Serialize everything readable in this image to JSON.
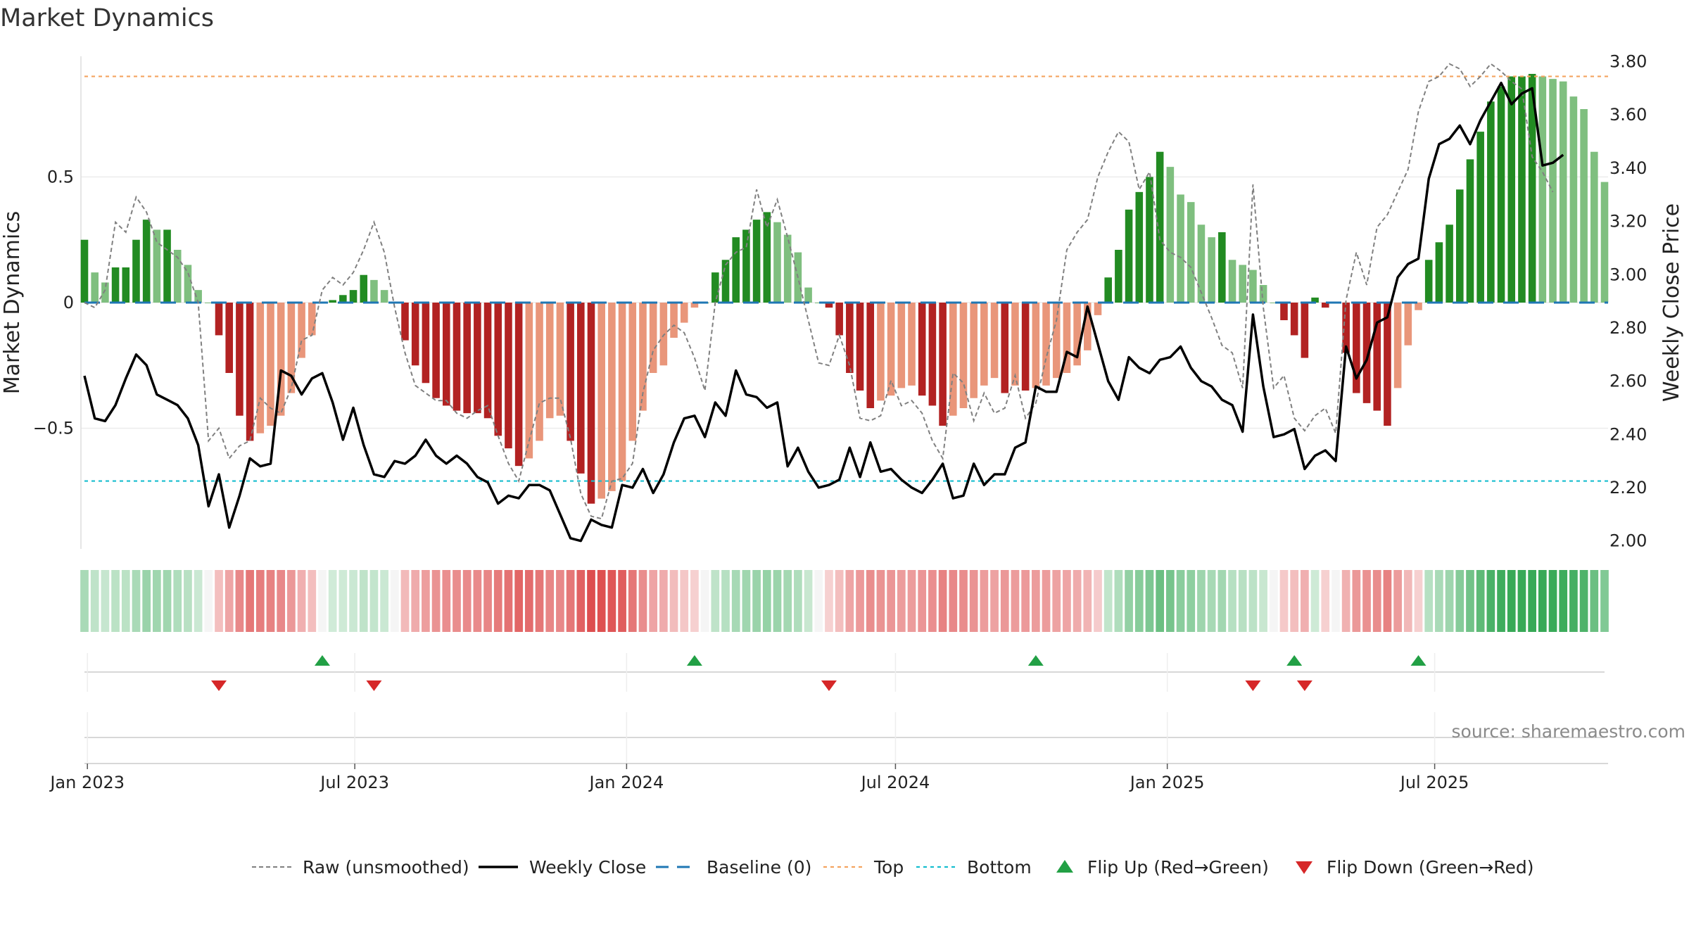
{
  "chart_data": {
    "type": "bar",
    "title": "Market Dynamics",
    "ylabel_left": "Market Dynamics",
    "ylabel_right": "Weekly Close Price",
    "ylim_left": [
      -0.98,
      0.98
    ],
    "ylim_right": [
      1.97,
      3.82
    ],
    "yticks_left": [
      {
        "value": 0.5,
        "label": "0.5"
      },
      {
        "value": 0,
        "label": "0"
      },
      {
        "value": -0.5,
        "label": "−0.5"
      }
    ],
    "yticks_right": [
      {
        "value": 3.8,
        "label": "3.80"
      },
      {
        "value": 3.6,
        "label": "3.60"
      },
      {
        "value": 3.4,
        "label": "3.40"
      },
      {
        "value": 3.2,
        "label": "3.20"
      },
      {
        "value": 3.0,
        "label": "3.00"
      },
      {
        "value": 2.8,
        "label": "2.80"
      },
      {
        "value": 2.6,
        "label": "2.60"
      },
      {
        "value": 2.4,
        "label": "2.40"
      },
      {
        "value": 2.2,
        "label": "2.20"
      },
      {
        "value": 2.0,
        "label": "2.00"
      }
    ],
    "x_start": "2022-12-30",
    "x_step_days": 7,
    "xticks": [
      {
        "date": "2023-01-01",
        "label": "Jan 2023"
      },
      {
        "date": "2023-07-01",
        "label": "Jul 2023"
      },
      {
        "date": "2024-01-01",
        "label": "Jan 2024"
      },
      {
        "date": "2024-07-01",
        "label": "Jul 2024"
      },
      {
        "date": "2025-01-01",
        "label": "Jan 2025"
      },
      {
        "date": "2025-07-01",
        "label": "Jul 2025"
      }
    ],
    "top": 0.9,
    "bottom": -0.71,
    "baseline": 0,
    "colors": {
      "pos_strong": "#228b22",
      "pos_weak": "#7fbf7f",
      "neg_strong": "#b22222",
      "neg_weak": "#e9967a",
      "close": "#000000",
      "raw": "#808080",
      "baseline": "#1f77b4",
      "top": "#f4a460",
      "bottom": "#17becf",
      "flip_up": "#22a045",
      "flip_down": "#d62728"
    },
    "dynamics": [
      0.25,
      0.12,
      0.08,
      0.14,
      0.14,
      0.25,
      0.33,
      0.29,
      0.29,
      0.21,
      0.15,
      0.05,
      0,
      -0.13,
      -0.28,
      -0.45,
      -0.55,
      -0.52,
      -0.49,
      -0.45,
      -0.36,
      -0.22,
      -0.13,
      0,
      0.01,
      0.03,
      0.05,
      0.11,
      0.09,
      0.05,
      0,
      -0.15,
      -0.25,
      -0.32,
      -0.38,
      -0.41,
      -0.43,
      -0.44,
      -0.44,
      -0.46,
      -0.53,
      -0.58,
      -0.65,
      -0.62,
      -0.55,
      -0.46,
      -0.45,
      -0.55,
      -0.68,
      -0.8,
      -0.78,
      -0.75,
      -0.71,
      -0.55,
      -0.43,
      -0.28,
      -0.25,
      -0.14,
      -0.08,
      -0.02,
      0,
      0.12,
      0.17,
      0.26,
      0.29,
      0.33,
      0.36,
      0.32,
      0.27,
      0.2,
      0.06,
      0,
      -0.02,
      -0.13,
      -0.28,
      -0.35,
      -0.42,
      -0.39,
      -0.37,
      -0.34,
      -0.33,
      -0.37,
      -0.41,
      -0.49,
      -0.45,
      -0.42,
      -0.38,
      -0.33,
      -0.3,
      -0.36,
      -0.33,
      -0.35,
      -0.34,
      -0.33,
      -0.3,
      -0.28,
      -0.25,
      -0.19,
      -0.05,
      0.1,
      0.21,
      0.37,
      0.44,
      0.5,
      0.6,
      0.54,
      0.43,
      0.4,
      0.31,
      0.26,
      0.28,
      0.17,
      0.15,
      0.13,
      0.07,
      0,
      -0.07,
      -0.13,
      -0.22,
      0.02,
      -0.02,
      0,
      -0.2,
      -0.36,
      -0.4,
      -0.43,
      -0.49,
      -0.34,
      -0.17,
      -0.03,
      0.17,
      0.24,
      0.31,
      0.45,
      0.57,
      0.68,
      0.8,
      0.86,
      0.9,
      0.9,
      0.91,
      0.9,
      0.89,
      0.88,
      0.82,
      0.77,
      0.6,
      0.48
    ],
    "close": [
      2.62,
      2.46,
      2.45,
      2.51,
      2.61,
      2.7,
      2.66,
      2.55,
      2.53,
      2.51,
      2.46,
      2.36,
      2.13,
      2.25,
      2.05,
      2.17,
      2.31,
      2.28,
      2.29,
      2.64,
      2.62,
      2.55,
      2.61,
      2.63,
      2.52,
      2.38,
      2.5,
      2.36,
      2.25,
      2.24,
      2.3,
      2.29,
      2.32,
      2.38,
      2.32,
      2.29,
      2.32,
      2.29,
      2.24,
      2.22,
      2.14,
      2.17,
      2.16,
      2.21,
      2.21,
      2.19,
      2.1,
      2.01,
      2.0,
      2.08,
      2.06,
      2.05,
      2.21,
      2.2,
      2.27,
      2.18,
      2.25,
      2.37,
      2.46,
      2.47,
      2.39,
      2.52,
      2.47,
      2.64,
      2.55,
      2.54,
      2.5,
      2.52,
      2.28,
      2.35,
      2.26,
      2.2,
      2.21,
      2.23,
      2.35,
      2.24,
      2.37,
      2.26,
      2.27,
      2.23,
      2.2,
      2.18,
      2.23,
      2.29,
      2.16,
      2.17,
      2.29,
      2.21,
      2.25,
      2.25,
      2.35,
      2.37,
      2.58,
      2.56,
      2.56,
      2.71,
      2.69,
      2.88,
      2.74,
      2.6,
      2.53,
      2.69,
      2.65,
      2.63,
      2.68,
      2.69,
      2.73,
      2.65,
      2.6,
      2.58,
      2.53,
      2.51,
      2.41,
      2.85,
      2.58,
      2.39,
      2.4,
      2.42,
      2.27,
      2.32,
      2.34,
      2.3,
      2.73,
      2.61,
      2.68,
      2.82,
      2.84,
      2.99,
      3.04,
      3.06,
      3.36,
      3.49,
      3.51,
      3.56,
      3.49,
      3.58,
      3.65,
      3.72,
      3.64,
      3.68,
      3.7,
      3.41,
      3.42,
      3.45
    ],
    "raw": [
      0,
      -0.02,
      0.05,
      0.32,
      0.28,
      0.42,
      0.36,
      0.24,
      0.21,
      0.18,
      0.12,
      0,
      -0.55,
      -0.5,
      -0.62,
      -0.57,
      -0.55,
      -0.38,
      -0.42,
      -0.44,
      -0.34,
      -0.15,
      -0.13,
      0.05,
      0.1,
      0.07,
      0.12,
      0.21,
      0.32,
      0.2,
      -0.02,
      -0.2,
      -0.33,
      -0.36,
      -0.39,
      -0.39,
      -0.44,
      -0.46,
      -0.43,
      -0.41,
      -0.53,
      -0.64,
      -0.71,
      -0.55,
      -0.4,
      -0.38,
      -0.38,
      -0.54,
      -0.76,
      -0.85,
      -0.86,
      -0.71,
      -0.7,
      -0.64,
      -0.36,
      -0.19,
      -0.13,
      -0.09,
      -0.12,
      -0.22,
      -0.35,
      0,
      0.15,
      0.2,
      0.22,
      0.45,
      0.3,
      0.41,
      0.26,
      0.1,
      -0.07,
      -0.24,
      -0.25,
      -0.13,
      -0.25,
      -0.46,
      -0.47,
      -0.45,
      -0.31,
      -0.41,
      -0.39,
      -0.44,
      -0.55,
      -0.62,
      -0.28,
      -0.32,
      -0.47,
      -0.36,
      -0.44,
      -0.42,
      -0.29,
      -0.46,
      -0.4,
      -0.22,
      -0.07,
      0.21,
      0.28,
      0.33,
      0.5,
      0.6,
      0.68,
      0.64,
      0.45,
      0.52,
      0.25,
      0.2,
      0.18,
      0.14,
      0.04,
      -0.06,
      -0.17,
      -0.2,
      -0.34,
      0.47,
      -0.02,
      -0.34,
      -0.29,
      -0.46,
      -0.51,
      -0.45,
      -0.42,
      -0.52,
      0.01,
      0.2,
      0.07,
      0.3,
      0.35,
      0.44,
      0.53,
      0.76,
      0.88,
      0.9,
      0.95,
      0.93,
      0.86,
      0.9,
      0.95,
      0.92,
      0.88,
      0.85,
      0.58,
      0.52,
      0.44
    ],
    "flips": [
      {
        "type": "up",
        "date": "2023-06-09"
      },
      {
        "type": "up",
        "date": "2024-02-16"
      },
      {
        "type": "up",
        "date": "2024-10-04"
      },
      {
        "type": "up",
        "date": "2025-03-28"
      },
      {
        "type": "up",
        "date": "2025-06-20"
      },
      {
        "type": "down",
        "date": "2023-03-31"
      },
      {
        "type": "down",
        "date": "2023-07-14"
      },
      {
        "type": "down",
        "date": "2024-05-17"
      },
      {
        "type": "down",
        "date": "2025-02-28"
      },
      {
        "type": "down",
        "date": "2025-04-04"
      }
    ],
    "legend": [
      {
        "label": "Raw (unsmoothed)",
        "style": "raw"
      },
      {
        "label": "Weekly Close",
        "style": "close"
      },
      {
        "label": "Baseline (0)",
        "style": "baseline"
      },
      {
        "label": "Top",
        "style": "top"
      },
      {
        "label": "Bottom",
        "style": "bottom"
      },
      {
        "label": "Flip Up (Red→Green)",
        "style": "flip_up"
      },
      {
        "label": "Flip Down (Green→Red)",
        "style": "flip_down"
      }
    ],
    "source": "source: sharemaestro.com"
  }
}
